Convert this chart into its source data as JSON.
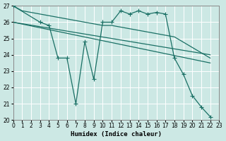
{
  "bg": "#cce8e4",
  "lc": "#1a7065",
  "xlabel": "Humidex (Indice chaleur)",
  "xlim": [
    0,
    23
  ],
  "ylim": [
    20,
    27
  ],
  "yticks": [
    20,
    21,
    22,
    23,
    24,
    25,
    26,
    27
  ],
  "line_top": {
    "x": [
      0,
      1,
      2,
      3,
      4,
      5,
      6,
      7,
      8,
      9,
      10,
      11,
      12,
      13,
      14,
      15,
      16,
      17,
      18,
      22
    ],
    "y": [
      27.0,
      26.7,
      26.6,
      26.5,
      26.4,
      26.3,
      26.2,
      26.1,
      26.0,
      25.9,
      25.8,
      25.8,
      25.7,
      25.6,
      25.5,
      25.4,
      25.3,
      25.2,
      25.1,
      23.8
    ]
  },
  "line_mid1": {
    "x": [
      0,
      22
    ],
    "y": [
      26.0,
      24.0
    ]
  },
  "line_mid2": {
    "x": [
      0,
      22
    ],
    "y": [
      26.0,
      23.5
    ]
  },
  "zigzag": {
    "x": [
      0,
      3,
      4,
      5,
      6,
      7,
      8,
      9,
      10,
      11,
      12,
      13,
      14,
      15,
      16,
      17,
      18,
      19,
      20,
      21,
      22
    ],
    "y": [
      27.0,
      26.0,
      25.8,
      23.8,
      23.8,
      21.0,
      24.8,
      22.5,
      26.0,
      26.0,
      26.7,
      26.5,
      26.7,
      26.5,
      26.6,
      26.5,
      23.8,
      22.8,
      21.5,
      20.8,
      20.2
    ]
  }
}
